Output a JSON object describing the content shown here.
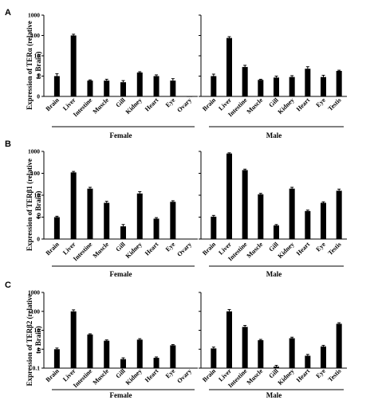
{
  "chart_data": [
    {
      "type": "bar",
      "panel": "A",
      "ylabel_line1": "Expression of TERα (relative",
      "ylabel_line2": "to Brain)",
      "yscale": "log",
      "ylim": [
        0,
        1000
      ],
      "yticks": [
        "0",
        "1",
        "10",
        "100",
        "1000"
      ],
      "groups": [
        {
          "name": "Female",
          "categories": [
            "Brain",
            "Liver",
            "Intestine",
            "Muscle",
            "Gill",
            "Kidney",
            "Heart",
            "Eye",
            "Ovary"
          ],
          "values": [
            1.0,
            100,
            0.6,
            0.6,
            0.5,
            1.5,
            1.0,
            0.6,
            0.02
          ],
          "errors": [
            0.3,
            15,
            0.05,
            0.1,
            0.1,
            0.15,
            0.15,
            0.15,
            0
          ]
        },
        {
          "name": "Male",
          "categories": [
            "Brain",
            "Liver",
            "Intestine",
            "Muscle",
            "Gill",
            "Kidney",
            "Heart",
            "Eye",
            "Testis"
          ],
          "values": [
            1.0,
            75,
            2.8,
            0.65,
            0.85,
            0.9,
            2.3,
            0.9,
            1.8
          ],
          "errors": [
            0.25,
            12,
            0.6,
            0.05,
            0.15,
            0.15,
            0.6,
            0.2,
            0.15
          ]
        }
      ]
    },
    {
      "type": "bar",
      "panel": "B",
      "ylabel_line1": "Expression of TERβ1 (relative",
      "ylabel_line2": "to Brain)",
      "yscale": "log",
      "ylim": [
        0,
        1000
      ],
      "yticks": [
        "0",
        "1",
        "10",
        "100",
        "1000"
      ],
      "groups": [
        {
          "name": "Female",
          "categories": [
            "Brain",
            "Liver",
            "Intestine",
            "Muscle",
            "Gill",
            "Kidney",
            "Heart",
            "Eye",
            "Ovary"
          ],
          "values": [
            1.0,
            110,
            20,
            4.5,
            0.38,
            12,
            0.85,
            5.0,
            0
          ],
          "errors": [
            0.1,
            12,
            3,
            0.8,
            0.08,
            2.5,
            0.1,
            0.6,
            0
          ]
        },
        {
          "name": "Male",
          "categories": [
            "Brain",
            "Liver",
            "Intestine",
            "Muscle",
            "Gill",
            "Kidney",
            "Heart",
            "Eye",
            "Testis"
          ],
          "values": [
            1.05,
            800,
            140,
            11,
            0.42,
            20,
            1.9,
            4.5,
            16
          ],
          "errors": [
            0.15,
            60,
            15,
            1.2,
            0.04,
            3,
            0.2,
            0.5,
            3
          ]
        }
      ]
    },
    {
      "type": "bar",
      "panel": "C",
      "ylabel_line1": "Expression of TERβ2 (relative",
      "ylabel_line2": "to Brain)",
      "yscale": "log",
      "ylim": [
        0.1,
        1000
      ],
      "yticks": [
        "0.1",
        "1",
        "10",
        "100",
        "1000"
      ],
      "groups": [
        {
          "name": "Female",
          "categories": [
            "Brain",
            "Liver",
            "Intestine",
            "Muscle",
            "Gill",
            "Kidney",
            "Heart",
            "Eye",
            "Ovary"
          ],
          "values": [
            1.0,
            100,
            6.0,
            2.8,
            0.3,
            3.2,
            0.35,
            1.6,
            0
          ],
          "errors": [
            0.15,
            20,
            0.5,
            0.3,
            0.05,
            0.4,
            0.04,
            0.15,
            0
          ]
        },
        {
          "name": "Male",
          "categories": [
            "Brain",
            "Liver",
            "Intestine",
            "Muscle",
            "Gill",
            "Kidney",
            "Heart",
            "Eye",
            "Testis"
          ],
          "values": [
            1.1,
            100,
            15,
            3.0,
            0.12,
            3.8,
            0.45,
            1.4,
            22
          ],
          "errors": [
            0.2,
            25,
            3,
            0.3,
            0.02,
            0.5,
            0.08,
            0.2,
            3
          ]
        }
      ]
    }
  ]
}
